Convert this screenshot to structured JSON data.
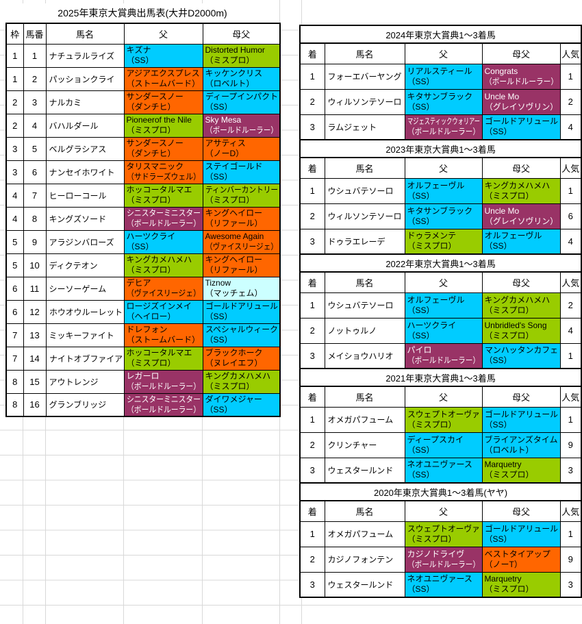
{
  "palette": {
    "cyan": "#00CCFF",
    "lime": "#99CC00",
    "orange": "#FF6600",
    "plum": "#993366",
    "pale_cyan": "#CCFFFF"
  },
  "grid_color": "#D8D8D8",
  "entry_table": {
    "title": "2025年東京大賞典出馬表(大井D2000m)",
    "headers": {
      "waku": "枠",
      "num": "馬番",
      "name": "馬名",
      "sire": "父",
      "damsire": "母父"
    },
    "rows": [
      {
        "waku": "1",
        "num": "1",
        "name": "ナチュラルライズ",
        "sire": {
          "name": "キズナ",
          "line": "（SS）",
          "color": "cyan"
        },
        "damsire": {
          "name": "Distorted Humor",
          "line": "（ミスプロ）",
          "color": "lime"
        }
      },
      {
        "waku": "1",
        "num": "2",
        "name": "パッションクライ",
        "sire": {
          "name": "アジアエクスプレス",
          "line": "（ストームバード）",
          "color": "orange"
        },
        "damsire": {
          "name": "キッケンクリス",
          "line": "（ロベルト）",
          "color": "cyan"
        }
      },
      {
        "waku": "2",
        "num": "3",
        "name": "ナルカミ",
        "sire": {
          "name": "サンダースノー",
          "line": "（ダンチヒ）",
          "color": "orange"
        },
        "damsire": {
          "name": "ディープインパクト",
          "line": "（SS）",
          "color": "cyan"
        }
      },
      {
        "waku": "2",
        "num": "4",
        "name": "バハルダール",
        "sire": {
          "name": "Pioneerof the Nile",
          "line": "（ミスプロ）",
          "color": "lime"
        },
        "damsire": {
          "name": "Sky Mesa",
          "line": "（ボールドルーラー）",
          "color": "plum"
        }
      },
      {
        "waku": "3",
        "num": "5",
        "name": "ベルグラシアス",
        "sire": {
          "name": "サンダースノー",
          "line": "（ダンチヒ）",
          "color": "orange"
        },
        "damsire": {
          "name": "アサティス",
          "line": "（ノーD）",
          "color": "orange"
        }
      },
      {
        "waku": "3",
        "num": "6",
        "name": "ナンセイホワイト",
        "sire": {
          "name": "タリスマニック",
          "line": "（サドラーズウェル）",
          "color": "orange"
        },
        "damsire": {
          "name": "ステイゴールド",
          "line": "（SS）",
          "color": "cyan"
        }
      },
      {
        "waku": "4",
        "num": "7",
        "name": "ヒーローコール",
        "sire": {
          "name": "ホッコータルマエ",
          "line": "（ミスプロ）",
          "color": "lime"
        },
        "damsire": {
          "name": "ティンバーカントリー",
          "line": "（ミスプロ）",
          "color": "lime"
        }
      },
      {
        "waku": "4",
        "num": "8",
        "name": "キングズソード",
        "sire": {
          "name": "シニスターミニスター",
          "line": "（ボールドルーラー）",
          "color": "plum"
        },
        "damsire": {
          "name": "キングヘイロー",
          "line": "（リファール）",
          "color": "orange"
        }
      },
      {
        "waku": "5",
        "num": "9",
        "name": "アラジンバローズ",
        "sire": {
          "name": "ハーツクライ",
          "line": "（SS）",
          "color": "cyan"
        },
        "damsire": {
          "name": "Awesome Again",
          "line": "（ヴァイスリージェ）",
          "color": "orange"
        }
      },
      {
        "waku": "5",
        "num": "10",
        "name": "ディクテオン",
        "sire": {
          "name": "キングカメハメハ",
          "line": "（ミスプロ）",
          "color": "lime"
        },
        "damsire": {
          "name": "キングヘイロー",
          "line": "（リファール）",
          "color": "orange"
        }
      },
      {
        "waku": "6",
        "num": "11",
        "name": "シーソーゲーム",
        "sire": {
          "name": "デヒア",
          "line": "（ヴァイスリージェ）",
          "color": "orange"
        },
        "damsire": {
          "name": "Tiznow",
          "line": "（マッチェム）",
          "color": "pale_cyan"
        }
      },
      {
        "waku": "6",
        "num": "12",
        "name": "ホウオウルーレット",
        "sire": {
          "name": "ロージズインメイ",
          "line": "（ヘイロー）",
          "color": "cyan"
        },
        "damsire": {
          "name": "ゴールドアリュール",
          "line": "（SS）",
          "color": "cyan"
        }
      },
      {
        "waku": "7",
        "num": "13",
        "name": "ミッキーファイト",
        "sire": {
          "name": "ドレフォン",
          "line": "（ストームバード）",
          "color": "orange"
        },
        "damsire": {
          "name": "スペシャルウィーク",
          "line": "（SS）",
          "color": "cyan"
        }
      },
      {
        "waku": "7",
        "num": "14",
        "name": "ナイトオブファイア",
        "sire": {
          "name": "ホッコータルマエ",
          "line": "（ミスプロ）",
          "color": "lime"
        },
        "damsire": {
          "name": "ブラックホーク",
          "line": "（ヌレイエフ）",
          "color": "orange"
        }
      },
      {
        "waku": "8",
        "num": "15",
        "name": "アウトレンジ",
        "sire": {
          "name": "レガーロ",
          "line": "（ボールドルーラー）",
          "color": "plum"
        },
        "damsire": {
          "name": "キングカメハメハ",
          "line": "（ミスプロ）",
          "color": "lime"
        }
      },
      {
        "waku": "8",
        "num": "16",
        "name": "グランブリッジ",
        "sire": {
          "name": "シニスターミニスター",
          "line": "（ボールドルーラー）",
          "color": "plum"
        },
        "damsire": {
          "name": "ダイワメジャー",
          "line": "（SS）",
          "color": "cyan"
        }
      }
    ]
  },
  "result_tables": [
    {
      "title": "2024年東京大賞典1～3着馬",
      "headers": {
        "pos": "着",
        "name": "馬名",
        "sire": "父",
        "damsire": "母父",
        "pop": "人気"
      },
      "rows": [
        {
          "pos": "1",
          "name": "フォーエバーヤング",
          "sire": {
            "name": "リアルスティール",
            "line": "（SS）",
            "color": "cyan"
          },
          "damsire": {
            "name": "Congrats",
            "line": "（ボールドルーラー）",
            "color": "plum"
          },
          "pop": "1"
        },
        {
          "pos": "2",
          "name": "ウィルソンテソーロ",
          "sire": {
            "name": "キタサンブラック",
            "line": "（SS）",
            "color": "cyan"
          },
          "damsire": {
            "name": "Uncle Mo",
            "line": "（グレイソヴリン）",
            "color": "plum"
          },
          "pop": "2"
        },
        {
          "pos": "3",
          "name": "ラムジェット",
          "sire": {
            "name": "マジェスティックウォリアー",
            "line": "（ボールドルーラー）",
            "color": "plum"
          },
          "damsire": {
            "name": "ゴールドアリュール",
            "line": "（SS）",
            "color": "cyan"
          },
          "pop": "4"
        }
      ]
    },
    {
      "title": "2023年東京大賞典1～3着馬",
      "headers": {
        "pos": "着",
        "name": "馬名",
        "sire": "父",
        "damsire": "母父",
        "pop": "人気"
      },
      "rows": [
        {
          "pos": "1",
          "name": "ウシュバテソーロ",
          "sire": {
            "name": "オルフェーヴル",
            "line": "（SS）",
            "color": "cyan"
          },
          "damsire": {
            "name": "キングカメハメハ",
            "line": "（ミスプロ）",
            "color": "lime"
          },
          "pop": "1"
        },
        {
          "pos": "2",
          "name": "ウィルソンテソーロ",
          "sire": {
            "name": "キタサンブラック",
            "line": "（SS）",
            "color": "cyan"
          },
          "damsire": {
            "name": "Uncle Mo",
            "line": "（グレイソヴリン）",
            "color": "plum"
          },
          "pop": "6"
        },
        {
          "pos": "3",
          "name": "ドゥラエレーデ",
          "sire": {
            "name": "ドゥラメンテ",
            "line": "（ミスプロ）",
            "color": "lime"
          },
          "damsire": {
            "name": "オルフェーヴル",
            "line": "（SS）",
            "color": "cyan"
          },
          "pop": "4"
        }
      ]
    },
    {
      "title": "2022年東京大賞典1～3着馬",
      "headers": {
        "pos": "着",
        "name": "馬名",
        "sire": "父",
        "damsire": "母父",
        "pop": "人気"
      },
      "rows": [
        {
          "pos": "1",
          "name": "ウシュバテソーロ",
          "sire": {
            "name": "オルフェーヴル",
            "line": "（SS）",
            "color": "cyan"
          },
          "damsire": {
            "name": "キングカメハメハ",
            "line": "（ミスプロ）",
            "color": "lime"
          },
          "pop": "2"
        },
        {
          "pos": "2",
          "name": "ノットゥルノ",
          "sire": {
            "name": "ハーツクライ",
            "line": "（SS）",
            "color": "cyan"
          },
          "damsire": {
            "name": "Unbridled's Song",
            "line": "（ミスプロ）",
            "color": "lime"
          },
          "pop": "4"
        },
        {
          "pos": "3",
          "name": "メイショウハリオ",
          "sire": {
            "name": "パイロ",
            "line": "（ボールドルーラー）",
            "color": "plum"
          },
          "damsire": {
            "name": "マンハッタンカフェ",
            "line": "（SS）",
            "color": "cyan"
          },
          "pop": "1"
        }
      ]
    },
    {
      "title": "2021年東京大賞典1～3着馬",
      "headers": {
        "pos": "着",
        "name": "馬名",
        "sire": "父",
        "damsire": "母父",
        "pop": "人気"
      },
      "rows": [
        {
          "pos": "1",
          "name": "オメガパフューム",
          "sire": {
            "name": "スウェプトオーヴァ",
            "line": "（ミスプロ）",
            "color": "lime"
          },
          "damsire": {
            "name": "ゴールドアリュール",
            "line": "（SS）",
            "color": "cyan"
          },
          "pop": "1"
        },
        {
          "pos": "2",
          "name": "クリンチャー",
          "sire": {
            "name": "ディープスカイ",
            "line": "（SS）",
            "color": "cyan"
          },
          "damsire": {
            "name": "ブライアンズタイム",
            "line": "（ロベルト）",
            "color": "cyan"
          },
          "pop": "9"
        },
        {
          "pos": "3",
          "name": "ウェスタールンド",
          "sire": {
            "name": "ネオユニヴァース",
            "line": "（SS）",
            "color": "cyan"
          },
          "damsire": {
            "name": "Marquetry",
            "line": "（ミスプロ）",
            "color": "lime"
          },
          "pop": "3"
        }
      ]
    },
    {
      "title": "2020年東京大賞典1～3着馬(ヤヤ)",
      "headers": {
        "pos": "着",
        "name": "馬名",
        "sire": "父",
        "damsire": "母父",
        "pop": "人気"
      },
      "rows": [
        {
          "pos": "1",
          "name": "オメガパフューム",
          "sire": {
            "name": "スウェプトオーヴァ",
            "line": "（ミスプロ）",
            "color": "lime"
          },
          "damsire": {
            "name": "ゴールドアリュール",
            "line": "（SS）",
            "color": "cyan"
          },
          "pop": "1"
        },
        {
          "pos": "2",
          "name": "カジノフォンテン",
          "sire": {
            "name": "カジノドライヴ",
            "line": "（ボールドルーラー）",
            "color": "plum"
          },
          "damsire": {
            "name": "ベストタイアップ",
            "line": "（ノーT）",
            "color": "orange"
          },
          "pop": "9"
        },
        {
          "pos": "3",
          "name": "ウェスタールンド",
          "sire": {
            "name": "ネオユニヴァース",
            "line": "（SS）",
            "color": "cyan"
          },
          "damsire": {
            "name": "Marquetry",
            "line": "（ミスプロ）",
            "color": "lime"
          },
          "pop": "3"
        }
      ]
    }
  ]
}
